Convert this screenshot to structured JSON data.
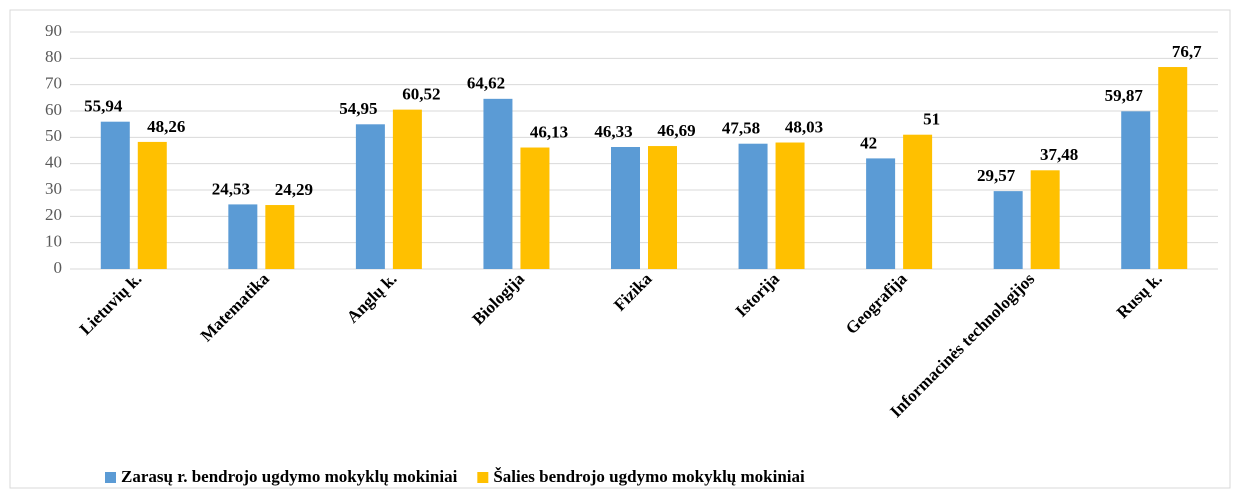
{
  "chart_data": {
    "type": "bar",
    "categories": [
      "Lietuvių k.",
      "Matematika",
      "Anglų k.",
      "Biologija",
      "Fizika",
      "Istorija",
      "Geografija",
      "Informacinės technologijos",
      "Rusų k."
    ],
    "series": [
      {
        "name": "Zarasų r. bendrojo ugdymo mokyklų mokiniai",
        "color": "#5b9bd5",
        "values": [
          55.94,
          24.53,
          54.95,
          64.62,
          46.33,
          47.58,
          42,
          29.57,
          59.87
        ],
        "value_labels": [
          "55,94",
          "24,53",
          "54,95",
          "64,62",
          "46,33",
          "47,58",
          "42",
          "29,57",
          "59,87"
        ]
      },
      {
        "name": "Šalies bendrojo ugdymo mokyklų mokiniai",
        "color": "#ffc000",
        "values": [
          48.26,
          24.29,
          60.52,
          46.13,
          46.69,
          48.03,
          51,
          37.48,
          76.7
        ],
        "value_labels": [
          "48,26",
          "24,29",
          "60,52",
          "46,13",
          "46,69",
          "48,03",
          "51",
          "37,48",
          "76,7"
        ]
      }
    ],
    "ylim": [
      0,
      90
    ],
    "yticks": [
      0,
      10,
      20,
      30,
      40,
      50,
      60,
      70,
      80,
      90
    ],
    "grid": true,
    "legend": "bottom"
  }
}
